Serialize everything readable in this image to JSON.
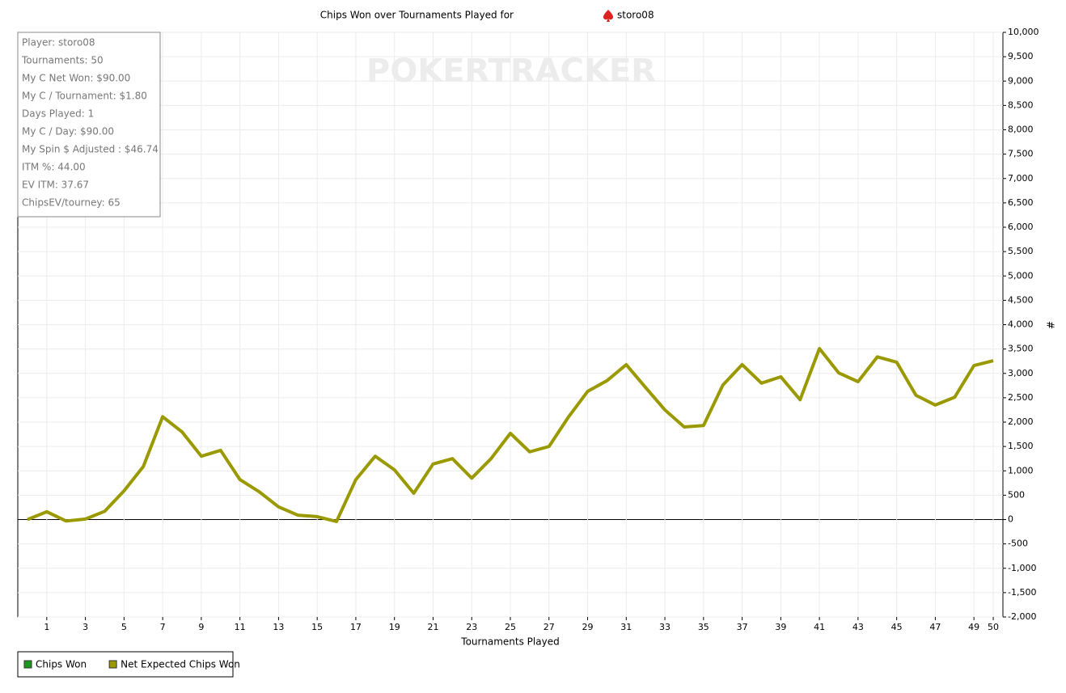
{
  "chart_data": {
    "type": "line",
    "title": "Chips Won over Tournaments Played for",
    "player": "storo08",
    "watermark": "POKERTRACKER",
    "x_label": "Tournaments Played",
    "y_label": "#",
    "stats": [
      "Player: storo08",
      "Tournaments: 50",
      "My C Net Won: $90.00",
      "My C / Tournament: $1.80",
      "Days Played: 1",
      "My C / Day: $90.00",
      "My Spin $ Adjusted : $46.74",
      "ITM %: 44.00",
      "EV ITM: 37.67",
      "ChipsEV/tourney: 65"
    ],
    "x": [
      0,
      1,
      2,
      3,
      4,
      5,
      6,
      7,
      8,
      9,
      10,
      11,
      12,
      13,
      14,
      15,
      16,
      17,
      18,
      19,
      20,
      21,
      22,
      23,
      24,
      25,
      26,
      27,
      28,
      29,
      30,
      31,
      32,
      33,
      34,
      35,
      36,
      37,
      38,
      39,
      40,
      41,
      42,
      43,
      44,
      45,
      46,
      47,
      48,
      49,
      50
    ],
    "series": [
      {
        "name": "Chips Won",
        "color": "#1a9a1a"
      },
      {
        "name": "Net Expected Chips Won",
        "color": "#9a9a00",
        "values": [
          0,
          160,
          -30,
          10,
          170,
          590,
          1090,
          2110,
          1800,
          1300,
          1420,
          820,
          570,
          260,
          90,
          60,
          -40,
          820,
          1300,
          1020,
          540,
          1140,
          1250,
          850,
          1250,
          1770,
          1390,
          1500,
          2100,
          2630,
          2850,
          3180,
          2710,
          2250,
          1900,
          1930,
          2760,
          3180,
          2800,
          2930,
          2460,
          3510,
          3010,
          2830,
          3340,
          3230,
          2550,
          2350,
          2510,
          3160,
          3260
        ]
      }
    ],
    "xlim": [
      -0.5,
      50.5
    ],
    "xticks": [
      1,
      3,
      5,
      7,
      9,
      11,
      13,
      15,
      17,
      19,
      21,
      23,
      25,
      27,
      29,
      31,
      33,
      35,
      37,
      39,
      41,
      43,
      45,
      47,
      49,
      50
    ],
    "ylim": [
      -2000,
      10000
    ],
    "yticks": [
      {
        "value": -2000,
        "label": "-2,000"
      },
      {
        "value": -1500,
        "label": "-1,500"
      },
      {
        "value": -1000,
        "label": "-1,000"
      },
      -500,
      0,
      500,
      {
        "value": 1000,
        "label": "1,000"
      },
      {
        "value": 1500,
        "label": "1,500"
      },
      {
        "value": 2000,
        "label": "2,000"
      },
      {
        "value": 2500,
        "label": "2,500"
      },
      {
        "value": 3000,
        "label": "3,000"
      },
      {
        "value": 3500,
        "label": "3,500"
      },
      {
        "value": 4000,
        "label": "4,000"
      },
      {
        "value": 4500,
        "label": "4,500"
      },
      {
        "value": 5000,
        "label": "5,000"
      },
      {
        "value": 5500,
        "label": "5,500"
      },
      {
        "value": 6000,
        "label": "6,000"
      },
      {
        "value": 6500,
        "label": "6,500"
      },
      {
        "value": 7000,
        "label": "7,000"
      },
      {
        "value": 7500,
        "label": "7,500"
      },
      {
        "value": 8000,
        "label": "8,000"
      },
      {
        "value": 8500,
        "label": "8,500"
      },
      {
        "value": 9000,
        "label": "9,000"
      },
      {
        "value": 9500,
        "label": "9,500"
      },
      {
        "value": 10000,
        "label": "10,000"
      }
    ],
    "grid": true
  }
}
